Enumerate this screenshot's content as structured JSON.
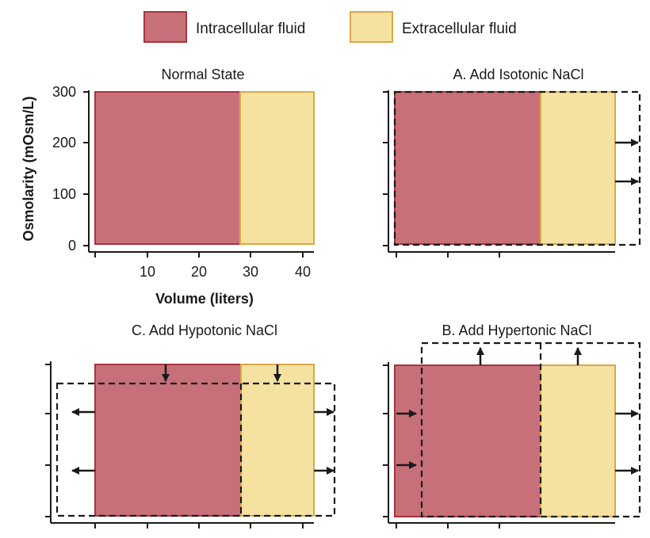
{
  "colors": {
    "intracellular": "#c8707a",
    "intracellular_border": "#a8333f",
    "extracellular": "#f5e2a1",
    "extracellular_border": "#d9a946",
    "axis": "#1a1a1a"
  },
  "legend": {
    "intracellular_label": "Intracellular fluid",
    "extracellular_label": "Extracellular fluid"
  },
  "axes": {
    "ylabel": "Osmolarity (mOsm/L)",
    "xlabel": "Volume (liters)",
    "y_ticks": [
      "300",
      "200",
      "100",
      "0"
    ],
    "x_ticks": [
      "10",
      "20",
      "30",
      "40"
    ]
  },
  "panels": {
    "normal": {
      "title": "Normal State"
    },
    "a": {
      "title": "A. Add Isotonic NaCl"
    },
    "b": {
      "title": "B. Add Hypertonic NaCl"
    },
    "c": {
      "title": "C. Add Hypotonic NaCl"
    }
  },
  "icons": {
    "arrow": "arrow-icon"
  }
}
